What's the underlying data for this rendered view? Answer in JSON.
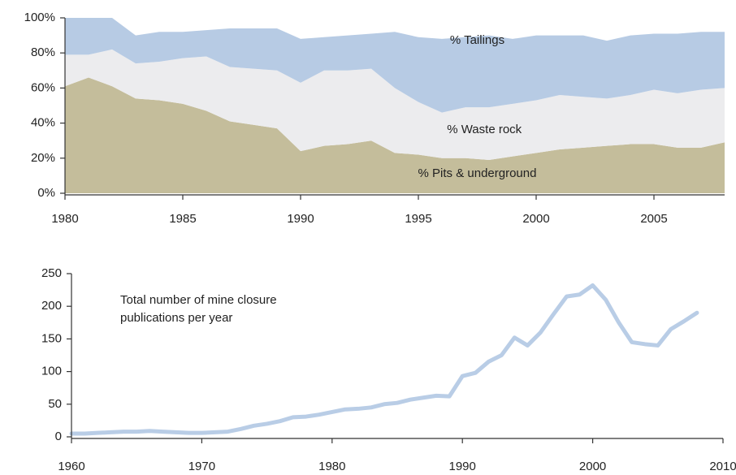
{
  "chart_data": [
    {
      "type": "stacked-area",
      "x": [
        1980,
        1981,
        1982,
        1983,
        1984,
        1985,
        1986,
        1987,
        1988,
        1989,
        1990,
        1991,
        1992,
        1993,
        1994,
        1995,
        1996,
        1997,
        1998,
        1999,
        2000,
        2001,
        2002,
        2003,
        2004,
        2005,
        2006,
        2007,
        2008
      ],
      "series": [
        {
          "name": "% Pits & underground",
          "color": "#c4bd9b",
          "values": [
            61,
            66,
            61,
            54,
            53,
            51,
            47,
            41,
            39,
            37,
            24,
            27,
            28,
            30,
            23,
            22,
            20,
            20,
            19,
            21,
            23,
            25,
            26,
            27,
            28,
            28,
            26,
            26,
            29
          ]
        },
        {
          "name": "% Waste rock",
          "color": "#ececee",
          "values": [
            18,
            13,
            21,
            20,
            22,
            26,
            31,
            31,
            32,
            33,
            39,
            43,
            42,
            41,
            37,
            30,
            26,
            29,
            30,
            30,
            30,
            31,
            29,
            27,
            28,
            31,
            31,
            33,
            31
          ]
        },
        {
          "name": "% Tailings",
          "color": "#b7cbe4",
          "values": [
            21,
            21,
            18,
            16,
            17,
            15,
            15,
            22,
            23,
            24,
            25,
            19,
            20,
            20,
            32,
            37,
            42,
            40,
            41,
            37,
            37,
            34,
            35,
            33,
            34,
            32,
            34,
            33,
            32
          ]
        }
      ],
      "xlim": [
        1980,
        2008
      ],
      "xticks": [
        1980,
        1985,
        1990,
        1995,
        2000,
        2005
      ],
      "ylim": [
        0,
        100
      ],
      "yticks": [
        {
          "value": 0,
          "label": "0%"
        },
        {
          "value": 20,
          "label": "20%"
        },
        {
          "value": 40,
          "label": "40%"
        },
        {
          "value": 60,
          "label": "60%"
        },
        {
          "value": 80,
          "label": "80%"
        },
        {
          "value": 100,
          "label": "100%"
        }
      ]
    },
    {
      "type": "line",
      "annotation": [
        "Total number of mine closure",
        "publications per year"
      ],
      "x": [
        1960,
        1961,
        1962,
        1963,
        1964,
        1965,
        1966,
        1967,
        1968,
        1969,
        1970,
        1971,
        1972,
        1973,
        1974,
        1975,
        1976,
        1977,
        1978,
        1979,
        1980,
        1981,
        1982,
        1983,
        1984,
        1985,
        1986,
        1987,
        1988,
        1989,
        1990,
        1991,
        1992,
        1993,
        1994,
        1995,
        1996,
        1997,
        1998,
        1999,
        2000,
        2001,
        2002,
        2003,
        2004,
        2005,
        2006,
        2007,
        2008
      ],
      "values": [
        5,
        5,
        6,
        7,
        8,
        8,
        9,
        8,
        7,
        6,
        6,
        7,
        8,
        12,
        17,
        20,
        24,
        30,
        31,
        34,
        38,
        42,
        43,
        45,
        50,
        52,
        57,
        60,
        63,
        62,
        93,
        98,
        115,
        125,
        152,
        140,
        160,
        188,
        215,
        218,
        232,
        210,
        175,
        145,
        142,
        140,
        165,
        177,
        190
      ],
      "color": "#b9cde6",
      "xlim": [
        1960,
        2010
      ],
      "xticks": [
        1960,
        1970,
        1980,
        1990,
        2000,
        2010
      ],
      "ylim": [
        0,
        250
      ],
      "yticks": [
        0,
        50,
        100,
        150,
        200,
        250
      ]
    }
  ]
}
